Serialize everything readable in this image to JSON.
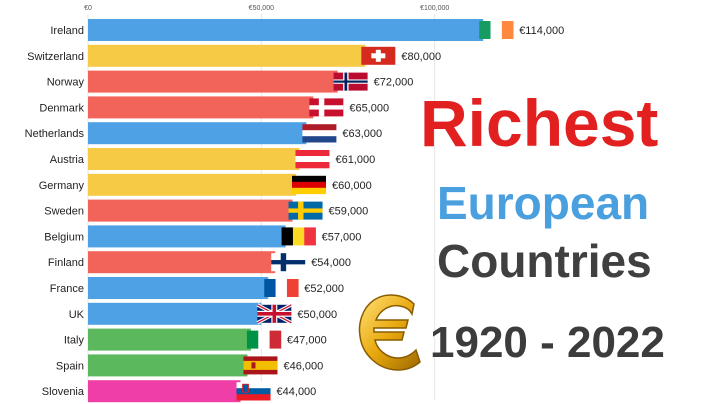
{
  "title": {
    "line1": "Richest",
    "line2": "European",
    "line3": "Countries",
    "years": "1920 - 2022",
    "colors": {
      "line1": "#e32020",
      "line2": "#4a9fde",
      "line3": "#404040"
    }
  },
  "euro_icon": "euro-coin-icon",
  "chart_data": {
    "type": "bar",
    "orientation": "horizontal",
    "xlim": [
      0,
      120000
    ],
    "ticks": [
      {
        "value": 0,
        "label": "€0"
      },
      {
        "value": 50000,
        "label": "€50,000"
      },
      {
        "value": 100000,
        "label": "€100,000"
      }
    ],
    "grid": true,
    "categories": [
      "Ireland",
      "Switzerland",
      "Norway",
      "Denmark",
      "Netherlands",
      "Austria",
      "Germany",
      "Sweden",
      "Belgium",
      "Finland",
      "France",
      "UK",
      "Italy",
      "Spain",
      "Slovenia"
    ],
    "values": [
      114000,
      80000,
      72000,
      65000,
      63000,
      61000,
      60000,
      59000,
      57000,
      54000,
      52000,
      50000,
      47000,
      46000,
      44000
    ],
    "value_labels": [
      "€114,000",
      "€80,000",
      "€72,000",
      "€65,000",
      "€63,000",
      "€61,000",
      "€60,000",
      "€59,000",
      "€57,000",
      "€54,000",
      "€52,000",
      "€50,000",
      "€47,000",
      "€46,000",
      "€44,000"
    ],
    "bar_colors": [
      "#4ea1e5",
      "#f7ca45",
      "#f26359",
      "#f26359",
      "#4ea1e5",
      "#f7ca45",
      "#f7ca45",
      "#f26359",
      "#4ea1e5",
      "#f26359",
      "#4ea1e5",
      "#4ea1e5",
      "#5cb85c",
      "#5cb85c",
      "#ef3fa6"
    ],
    "flags": [
      "ireland-flag-icon",
      "switzerland-flag-icon",
      "norway-flag-icon",
      "denmark-flag-icon",
      "netherlands-flag-icon",
      "austria-flag-icon",
      "germany-flag-icon",
      "sweden-flag-icon",
      "belgium-flag-icon",
      "finland-flag-icon",
      "france-flag-icon",
      "uk-flag-icon",
      "italy-flag-icon",
      "spain-flag-icon",
      "slovenia-flag-icon"
    ]
  }
}
